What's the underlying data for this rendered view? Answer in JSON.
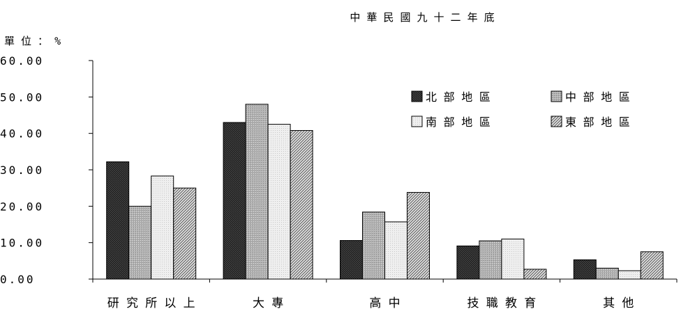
{
  "subtitle": "中 華 民 國 九 十 二 年 底",
  "unit_label": "單 位 ： %",
  "chart_data": {
    "type": "bar",
    "title": "",
    "subtitle": "中 華 民 國 九 十 二 年 底",
    "xlabel": "",
    "ylabel": "單 位 ： %",
    "ylim": [
      0,
      60
    ],
    "yticks": [
      0,
      10,
      20,
      30,
      40,
      50,
      60
    ],
    "ytick_labels": [
      "0.00",
      "10.00",
      "20.00",
      "30.00",
      "40.00",
      "50.00",
      "60.00"
    ],
    "categories": [
      "研 究 所 以 上",
      "大 專",
      "高 中",
      "技 職 教 育",
      "其 他"
    ],
    "series": [
      {
        "name": "北 部 地 區",
        "color": "#2b2b2b",
        "pattern": "dark-cross-hatch",
        "values": [
          32.2,
          43.0,
          10.6,
          9.1,
          5.3
        ]
      },
      {
        "name": "中 部 地 區",
        "color": "#b4b4b4",
        "pattern": "medium-gray",
        "values": [
          20.0,
          48.0,
          18.4,
          10.5,
          3.0
        ]
      },
      {
        "name": "南 部 地 區",
        "color": "#ebebeb",
        "pattern": "light-gray",
        "values": [
          28.3,
          42.5,
          15.7,
          11.0,
          2.3
        ]
      },
      {
        "name": "東 部 地 區",
        "color": "#a8a8a8",
        "pattern": "diagonal-lines",
        "values": [
          25.0,
          40.8,
          23.8,
          2.7,
          7.5
        ]
      }
    ],
    "grid": false,
    "legend_position": "top-right"
  }
}
